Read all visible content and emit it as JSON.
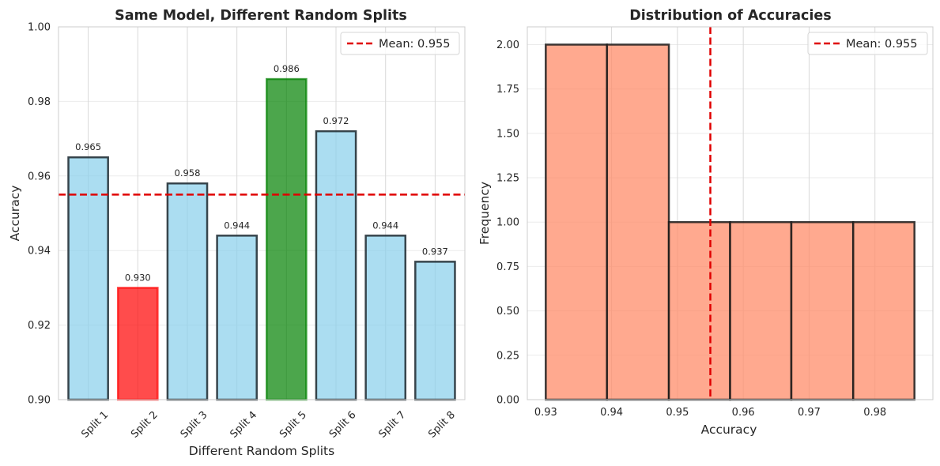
{
  "chart_data": [
    {
      "type": "bar",
      "title": "Same Model, Different Random Splits",
      "xlabel": "Different Random Splits",
      "ylabel": "Accuracy",
      "categories": [
        "Split 1",
        "Split 2",
        "Split 3",
        "Split 4",
        "Split 5",
        "Split 6",
        "Split 7",
        "Split 8"
      ],
      "values": [
        0.965,
        0.93,
        0.958,
        0.944,
        0.986,
        0.972,
        0.944,
        0.937
      ],
      "value_labels": [
        "0.965",
        "0.930",
        "0.958",
        "0.944",
        "0.986",
        "0.972",
        "0.944",
        "0.937"
      ],
      "bar_colors": [
        "#87CEEB",
        "#FF0000",
        "#87CEEB",
        "#87CEEB",
        "#008000",
        "#87CEEB",
        "#87CEEB",
        "#87CEEB"
      ],
      "edge_colors": [
        "#263238",
        "#FF0000",
        "#263238",
        "#263238",
        "#008000",
        "#263238",
        "#263238",
        "#263238"
      ],
      "ylim": [
        0.9,
        1.0
      ],
      "yticks": [
        0.9,
        0.92,
        0.94,
        0.96,
        0.98,
        1.0
      ],
      "ytick_labels": [
        "0.90",
        "0.92",
        "0.94",
        "0.96",
        "0.98",
        "1.00"
      ],
      "mean_line": {
        "value": 0.955,
        "label": "Mean: 0.955",
        "color": "#E00000"
      },
      "legend_loc": "upper right",
      "grid": true
    },
    {
      "type": "histogram",
      "title": "Distribution of Accuracies",
      "xlabel": "Accuracy",
      "ylabel": "Frequency",
      "bin_edges": [
        0.93,
        0.9393,
        0.9487,
        0.958,
        0.9673,
        0.9767,
        0.986
      ],
      "counts": [
        2,
        2,
        1,
        1,
        1,
        1
      ],
      "color": "#FF8C69",
      "xlim": [
        0.9272,
        0.9888
      ],
      "ylim": [
        0,
        2.1
      ],
      "xticks": [
        0.93,
        0.94,
        0.95,
        0.96,
        0.97,
        0.98
      ],
      "xtick_labels": [
        "0.93",
        "0.94",
        "0.95",
        "0.96",
        "0.97",
        "0.98"
      ],
      "yticks": [
        0,
        0.25,
        0.5,
        0.75,
        1.0,
        1.25,
        1.5,
        1.75,
        2.0
      ],
      "ytick_labels": [
        "0.00",
        "0.25",
        "0.50",
        "0.75",
        "1.00",
        "1.25",
        "1.50",
        "1.75",
        "2.00"
      ],
      "mean_line": {
        "value": 0.955,
        "label": "Mean: 0.955",
        "color": "#E00000"
      },
      "legend_loc": "upper right",
      "grid": true
    }
  ]
}
